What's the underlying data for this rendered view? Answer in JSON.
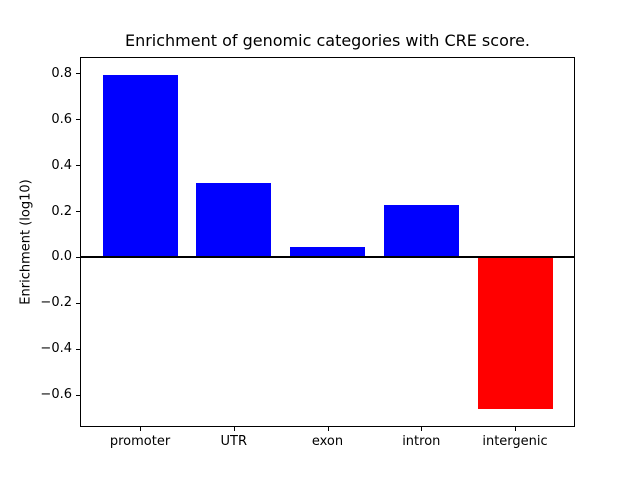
{
  "chart_data": {
    "type": "bar",
    "title": "Enrichment of genomic categories with CRE score.",
    "xlabel": "",
    "ylabel": "Enrichment (log10)",
    "categories": [
      "promoter",
      "UTR",
      "exon",
      "intron",
      "intergenic"
    ],
    "values": [
      0.79,
      0.32,
      0.045,
      0.225,
      -0.66
    ],
    "bar_colors": [
      "#0000ff",
      "#0000ff",
      "#0000ff",
      "#0000ff",
      "#ff0000"
    ],
    "bar_width": 0.8,
    "ylim": [
      -0.74,
      0.87
    ],
    "xlim": [
      -0.64,
      4.64
    ],
    "yticks": [
      -0.6,
      -0.4,
      -0.2,
      0.0,
      0.2,
      0.4,
      0.6,
      0.8
    ],
    "ytick_labels": [
      "−0.6",
      "−0.4",
      "−0.2",
      "0.0",
      "0.2",
      "0.4",
      "0.6",
      "0.8"
    ],
    "zero_line": {
      "y": 0,
      "color": "#000000",
      "thickness_px": 2
    },
    "grid": false,
    "legend": null,
    "colors": {
      "positive_bar": "#0000ff",
      "negative_bar": "#ff0000",
      "axis": "#000000",
      "text": "#000000",
      "background": "#ffffff"
    }
  }
}
